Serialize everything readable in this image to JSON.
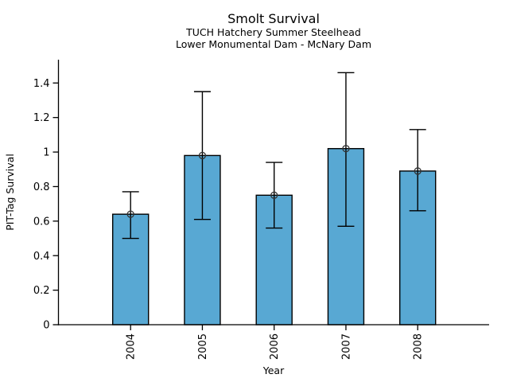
{
  "figure": {
    "title": "Smolt Survival",
    "subtitle1": "TUCH Hatchery Summer Steelhead",
    "subtitle2": "Lower Monumental Dam - McNary Dam"
  },
  "chart_data": {
    "type": "bar",
    "title": "Smolt Survival",
    "subtitle1": "TUCH Hatchery Summer Steelhead",
    "subtitle2": "Lower Monumental Dam - McNary Dam",
    "xlabel": "Year",
    "ylabel": "PIT-Tag Survival",
    "categories": [
      "2004",
      "2005",
      "2006",
      "2007",
      "2008"
    ],
    "values": [
      0.64,
      0.98,
      0.75,
      1.02,
      0.89
    ],
    "error_low": [
      0.5,
      0.61,
      0.56,
      0.57,
      0.66
    ],
    "error_high": [
      0.77,
      1.35,
      0.94,
      1.46,
      1.13
    ],
    "ytick_labels": [
      "0",
      "0.2",
      "0.4",
      "0.6",
      "0.8",
      "1",
      "1.2",
      "1.4"
    ],
    "ytick_values": [
      0,
      0.2,
      0.4,
      0.6,
      0.8,
      1,
      1.2,
      1.4
    ],
    "ylim": [
      0,
      1.535
    ],
    "grid": false,
    "legend": "none",
    "marker": "open-circle",
    "colors": {
      "bar_fill": "#58A8D3",
      "bar_edge": "#000000",
      "error_bar": "#000000",
      "marker_edge": "#333333",
      "axis": "#000000",
      "text": "#000000",
      "background": "#ffffff"
    }
  }
}
